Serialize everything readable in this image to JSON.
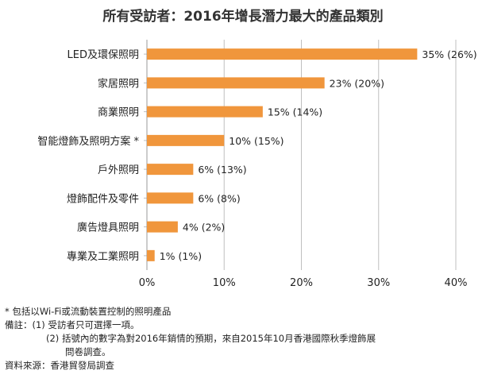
{
  "title": "所有受訪者：2016年增長潛力最大的產品類別",
  "chart_data": {
    "type": "bar",
    "orientation": "horizontal",
    "categories": [
      "LED及環保照明",
      "家居照明",
      "商業照明",
      "智能燈飾及照明方案 *",
      "戶外照明",
      "燈飾配件及零件",
      "廣告燈具照明",
      "專業及工業照明"
    ],
    "values": [
      35,
      23,
      15,
      10,
      6,
      6,
      4,
      1
    ],
    "data_labels": [
      "35% (26%)",
      "23% (20%)",
      "15% (14%)",
      "10% (15%)",
      "6% (13%)",
      "6% (8%)",
      "4% (2%)",
      "1% (1%)"
    ],
    "xlim": [
      0,
      40
    ],
    "ticks": [
      0,
      10,
      20,
      30,
      40
    ],
    "tick_labels": [
      "0%",
      "10%",
      "20%",
      "30%",
      "40%"
    ],
    "grid": "vertical",
    "bar_color": "#F0963C",
    "grid_color": "#BFBFBF"
  },
  "notes": {
    "asterisk": "* 包括以Wi-Fi或流動裝置控制的照明產品",
    "remark1": "備註：(1) 受訪者只可選擇一項。",
    "remark2": "(2) 括號內的數字為對2016年銷情的預期，來自2015年10月香港國際秋季燈飾展",
    "remark2b": "問卷調查。",
    "source": "資料來源：香港貿發局調查"
  }
}
